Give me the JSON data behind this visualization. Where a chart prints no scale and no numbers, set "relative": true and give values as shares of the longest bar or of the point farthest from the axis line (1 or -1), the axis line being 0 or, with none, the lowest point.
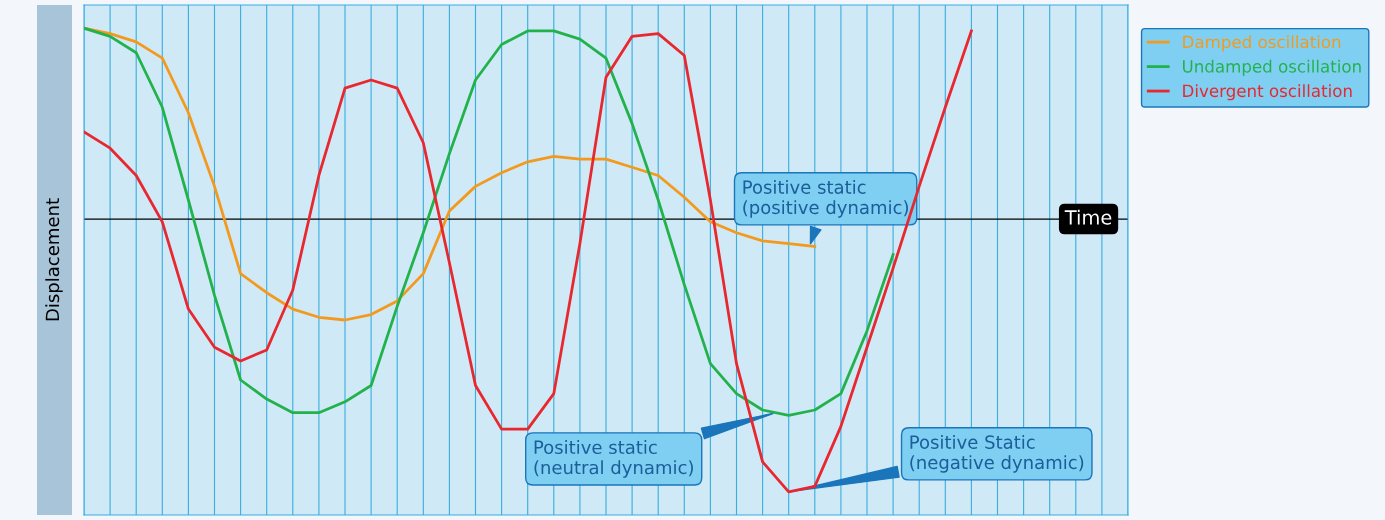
{
  "chart_data": {
    "type": "line",
    "relative": true,
    "xlabel": "Time",
    "ylabel": "Displacement",
    "grid": "x",
    "legend": "top right",
    "marker": "none",
    "line_style": "solid",
    "categories": [
      null,
      null,
      null,
      null,
      null,
      null,
      null,
      null,
      null,
      null,
      null,
      null,
      null,
      null,
      null,
      null,
      null,
      null,
      null,
      null,
      null,
      null,
      null,
      null,
      null,
      null,
      null,
      null,
      null,
      null,
      null,
      null,
      null,
      null,
      null,
      null,
      null,
      null,
      null,
      null,
      null
    ],
    "series": [
      {
        "name": "Damped oscillation",
        "color": "#f39a1e",
        "values": [
          0.7,
          0.68,
          0.65,
          0.59,
          0.39,
          0.12,
          -0.2,
          -0.27,
          -0.33,
          -0.36,
          -0.37,
          -0.35,
          -0.3,
          -0.2,
          0.03,
          0.12,
          0.17,
          0.21,
          0.23,
          0.22,
          0.22,
          0.19,
          0.16,
          0.08,
          -0.01,
          -0.05,
          -0.08,
          -0.09,
          -0.1,
          null,
          null,
          null,
          null,
          null,
          null,
          null,
          null,
          null,
          null,
          null,
          null
        ]
      },
      {
        "name": "Undamped oscillation",
        "color": "#22b24c",
        "values": [
          0.7,
          0.67,
          0.61,
          0.41,
          0.07,
          -0.28,
          -0.59,
          -0.66,
          -0.71,
          -0.71,
          -0.67,
          -0.61,
          -0.32,
          -0.05,
          0.24,
          0.51,
          0.64,
          0.69,
          0.69,
          0.66,
          0.59,
          0.35,
          0.07,
          -0.24,
          -0.53,
          -0.64,
          -0.7,
          -0.72,
          -0.7,
          -0.64,
          -0.41,
          -0.13,
          null,
          null,
          null,
          null,
          null,
          null,
          null,
          null,
          null
        ]
      },
      {
        "name": "Divergent oscillation",
        "color": "#e8272e",
        "values": [
          0.32,
          0.26,
          0.16,
          -0.01,
          -0.33,
          -0.47,
          -0.52,
          -0.48,
          -0.26,
          0.16,
          0.48,
          0.51,
          0.48,
          0.28,
          -0.16,
          -0.61,
          -0.77,
          -0.77,
          -0.64,
          -0.09,
          0.52,
          0.67,
          0.68,
          0.6,
          0.07,
          -0.53,
          -0.89,
          -1.0,
          -0.98,
          -0.76,
          -0.47,
          -0.18,
          0.12,
          0.41,
          0.69,
          null,
          null,
          null,
          null,
          null,
          null
        ]
      }
    ],
    "annotations": [
      "Positive static\n(positive dynamic)",
      "Positive static\n(neutral dynamic)",
      "Positive Static\n(negative dynamic)"
    ]
  }
}
